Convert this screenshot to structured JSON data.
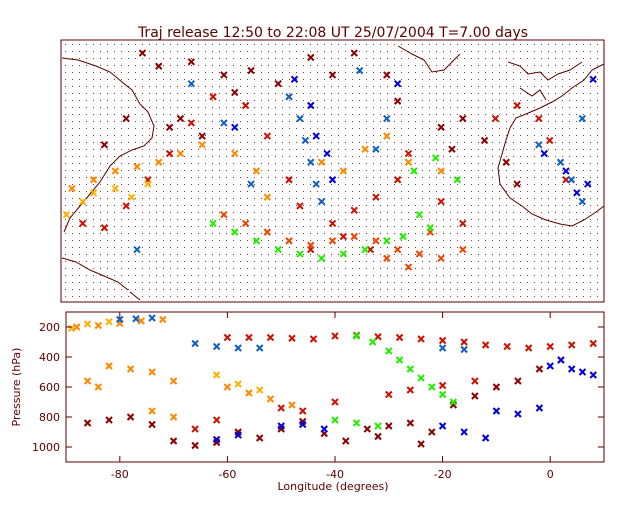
{
  "title": "Traj release 12:50 to 22:08 UT 25/07/2004     T=7.00 days",
  "chart_data": [
    {
      "type": "scatter",
      "panel": "map",
      "xlim": [
        -90,
        10
      ],
      "ylim": [
        10,
        70
      ],
      "grid": "dotted",
      "marker": "x",
      "series": [
        {
          "color": "#8b0000",
          "points": [
            [
              -75,
              67
            ],
            [
              -72,
              64
            ],
            [
              -66,
              65
            ],
            [
              -60,
              62
            ],
            [
              -58,
              58
            ],
            [
              -68,
              52
            ],
            [
              -64,
              48
            ],
            [
              -55,
              63
            ],
            [
              -50,
              60
            ],
            [
              -44,
              66
            ],
            [
              -40,
              62
            ],
            [
              -36,
              67
            ],
            [
              -30,
              62
            ],
            [
              -28,
              56
            ],
            [
              -20,
              50
            ],
            [
              -18,
              45
            ],
            [
              -16,
              52
            ],
            [
              -12,
              47
            ],
            [
              -8,
              42
            ],
            [
              -6,
              37
            ],
            [
              -78,
              52
            ],
            [
              -82,
              46
            ],
            [
              -70,
              50
            ]
          ]
        },
        {
          "color": "#cc1100",
          "points": [
            [
              -86,
              28
            ],
            [
              -82,
              27
            ],
            [
              -78,
              32
            ],
            [
              -74,
              38
            ],
            [
              -70,
              44
            ],
            [
              -66,
              51
            ],
            [
              -62,
              57
            ],
            [
              -56,
              55
            ],
            [
              -52,
              48
            ],
            [
              -48,
              38
            ],
            [
              -46,
              32
            ],
            [
              -40,
              28
            ],
            [
              -36,
              31
            ],
            [
              -32,
              34
            ],
            [
              -28,
              38
            ],
            [
              -26,
              44
            ],
            [
              -20,
              33
            ],
            [
              -16,
              28
            ],
            [
              -10,
              52
            ],
            [
              -6,
              55
            ],
            [
              -2,
              52
            ],
            [
              0,
              47
            ],
            [
              3,
              38
            ],
            [
              -44,
              22
            ],
            [
              -38,
              25
            ],
            [
              -33,
              22
            ]
          ]
        },
        {
          "color": "#ee4400",
          "points": [
            [
              -60,
              30
            ],
            [
              -56,
              28
            ],
            [
              -52,
              26
            ],
            [
              -48,
              24
            ],
            [
              -44,
              23
            ],
            [
              -40,
              24
            ],
            [
              -36,
              25
            ],
            [
              -32,
              24
            ],
            [
              -28,
              22
            ],
            [
              -24,
              21
            ],
            [
              -20,
              20
            ],
            [
              -16,
              22
            ],
            [
              -22,
              26
            ],
            [
              -30,
              20
            ],
            [
              -26,
              18
            ]
          ]
        },
        {
          "color": "#ff8800",
          "points": [
            [
              -88,
              36
            ],
            [
              -84,
              38
            ],
            [
              -80,
              40
            ],
            [
              -76,
              41
            ],
            [
              -72,
              42
            ],
            [
              -68,
              44
            ],
            [
              -64,
              46
            ],
            [
              -58,
              44
            ],
            [
              -54,
              40
            ],
            [
              -52,
              34
            ],
            [
              -42,
              42
            ],
            [
              -38,
              40
            ],
            [
              -34,
              45
            ],
            [
              -30,
              48
            ],
            [
              -26,
              42
            ],
            [
              -20,
              40
            ]
          ]
        },
        {
          "color": "#ffb000",
          "points": [
            [
              -89,
              30
            ],
            [
              -86,
              33
            ],
            [
              -84,
              35
            ],
            [
              -80,
              36
            ],
            [
              -77,
              34
            ],
            [
              -74,
              37
            ]
          ]
        },
        {
          "color": "#22ee00",
          "points": [
            [
              -62,
              28
            ],
            [
              -58,
              26
            ],
            [
              -54,
              24
            ],
            [
              -50,
              22
            ],
            [
              -46,
              21
            ],
            [
              -42,
              20
            ],
            [
              -38,
              21
            ],
            [
              -34,
              22
            ],
            [
              -30,
              24
            ],
            [
              -27,
              25
            ],
            [
              -24,
              30
            ],
            [
              -22,
              27
            ],
            [
              -25,
              40
            ],
            [
              -21,
              43
            ],
            [
              -17,
              38
            ]
          ]
        },
        {
          "color": "#1060c0",
          "points": [
            [
              -48,
              57
            ],
            [
              -46,
              52
            ],
            [
              -45,
              47
            ],
            [
              -44,
              42
            ],
            [
              -43,
              37
            ],
            [
              -42,
              33
            ],
            [
              -32,
              45
            ],
            [
              -30,
              52
            ],
            [
              -2,
              46
            ],
            [
              2,
              42
            ],
            [
              4,
              38
            ],
            [
              6,
              33
            ],
            [
              6,
              52
            ],
            [
              -60,
              51
            ],
            [
              -76,
              22
            ],
            [
              -55,
              37
            ],
            [
              -66,
              60
            ],
            [
              -35,
              63
            ]
          ]
        },
        {
          "color": "#0000dd",
          "points": [
            [
              -47,
              61
            ],
            [
              -44,
              55
            ],
            [
              -43,
              48
            ],
            [
              -41,
              44
            ],
            [
              -40,
              38
            ],
            [
              -1,
              44
            ],
            [
              3,
              40
            ],
            [
              5,
              35
            ],
            [
              7,
              37
            ],
            [
              -58,
              50
            ],
            [
              -28,
              60
            ],
            [
              8,
              61
            ]
          ]
        }
      ]
    },
    {
      "type": "scatter",
      "panel": "profile",
      "xlabel": "Longitude  (degrees)",
      "ylabel": "Pressure  (hPa)",
      "xlim": [
        -90,
        10
      ],
      "ylim": [
        1100,
        100
      ],
      "xticks": [
        -80,
        -60,
        -40,
        -20,
        0
      ],
      "yticks": [
        200,
        400,
        600,
        800,
        1000
      ],
      "marker": "x",
      "series": [
        {
          "color": "#8b0000",
          "points": [
            [
              -86,
              840
            ],
            [
              -82,
              820
            ],
            [
              -78,
              800
            ],
            [
              -74,
              850
            ],
            [
              -70,
              960
            ],
            [
              -66,
              990
            ],
            [
              -62,
              970
            ],
            [
              -58,
              900
            ],
            [
              -54,
              940
            ],
            [
              -50,
              880
            ],
            [
              -46,
              830
            ],
            [
              -42,
              910
            ],
            [
              -38,
              960
            ],
            [
              -34,
              880
            ],
            [
              -30,
              860
            ],
            [
              -26,
              840
            ],
            [
              -22,
              900
            ],
            [
              -18,
              720
            ],
            [
              -14,
              660
            ],
            [
              -10,
              600
            ],
            [
              -6,
              560
            ],
            [
              -2,
              480
            ],
            [
              2,
              420
            ],
            [
              -32,
              930
            ],
            [
              -24,
              980
            ]
          ]
        },
        {
          "color": "#cc1100",
          "points": [
            [
              -60,
              270
            ],
            [
              -56,
              270
            ],
            [
              -52,
              270
            ],
            [
              -48,
              275
            ],
            [
              -44,
              280
            ],
            [
              -40,
              260
            ],
            [
              -36,
              255
            ],
            [
              -32,
              265
            ],
            [
              -28,
              270
            ],
            [
              -24,
              280
            ],
            [
              -20,
              290
            ],
            [
              -16,
              300
            ],
            [
              -12,
              320
            ],
            [
              -8,
              330
            ],
            [
              -4,
              340
            ],
            [
              0,
              330
            ],
            [
              4,
              320
            ],
            [
              8,
              310
            ],
            [
              -50,
              740
            ],
            [
              -46,
              760
            ],
            [
              -40,
              700
            ],
            [
              -30,
              650
            ],
            [
              -26,
              620
            ],
            [
              -20,
              590
            ],
            [
              -14,
              560
            ],
            [
              -62,
              820
            ],
            [
              -66,
              880
            ]
          ]
        },
        {
          "color": "#ff8800",
          "points": [
            [
              -88,
              200
            ],
            [
              -84,
              190
            ],
            [
              -80,
              175
            ],
            [
              -76,
              160
            ],
            [
              -72,
              150
            ],
            [
              -82,
              460
            ],
            [
              -78,
              480
            ],
            [
              -74,
              500
            ],
            [
              -70,
              560
            ],
            [
              -86,
              560
            ],
            [
              -84,
              600
            ],
            [
              -60,
              600
            ],
            [
              -56,
              640
            ],
            [
              -52,
              680
            ],
            [
              -48,
              720
            ],
            [
              -74,
              760
            ],
            [
              -70,
              800
            ]
          ]
        },
        {
          "color": "#ffb000",
          "points": [
            [
              -89,
              210
            ],
            [
              -86,
              180
            ],
            [
              -82,
              165
            ],
            [
              -62,
              520
            ],
            [
              -58,
              580
            ],
            [
              -54,
              620
            ]
          ]
        },
        {
          "color": "#22ee00",
          "points": [
            [
              -36,
              260
            ],
            [
              -33,
              300
            ],
            [
              -30,
              360
            ],
            [
              -28,
              420
            ],
            [
              -26,
              480
            ],
            [
              -24,
              540
            ],
            [
              -22,
              600
            ],
            [
              -20,
              650
            ],
            [
              -18,
              700
            ],
            [
              -40,
              820
            ],
            [
              -36,
              840
            ],
            [
              -32,
              860
            ]
          ]
        },
        {
          "color": "#1060c0",
          "points": [
            [
              -74,
              140
            ],
            [
              -77,
              145
            ],
            [
              -80,
              150
            ],
            [
              -66,
              310
            ],
            [
              -62,
              330
            ],
            [
              -58,
              340
            ],
            [
              -54,
              340
            ],
            [
              -20,
              340
            ],
            [
              -16,
              350
            ]
          ]
        },
        {
          "color": "#0000dd",
          "points": [
            [
              -62,
              950
            ],
            [
              -58,
              920
            ],
            [
              -50,
              860
            ],
            [
              -46,
              850
            ],
            [
              -42,
              880
            ],
            [
              -20,
              860
            ],
            [
              -16,
              900
            ],
            [
              -12,
              940
            ],
            [
              -10,
              760
            ],
            [
              -6,
              780
            ],
            [
              -2,
              740
            ],
            [
              2,
              420
            ],
            [
              4,
              480
            ],
            [
              6,
              500
            ],
            [
              8,
              520
            ],
            [
              0,
              460
            ]
          ]
        }
      ]
    }
  ]
}
